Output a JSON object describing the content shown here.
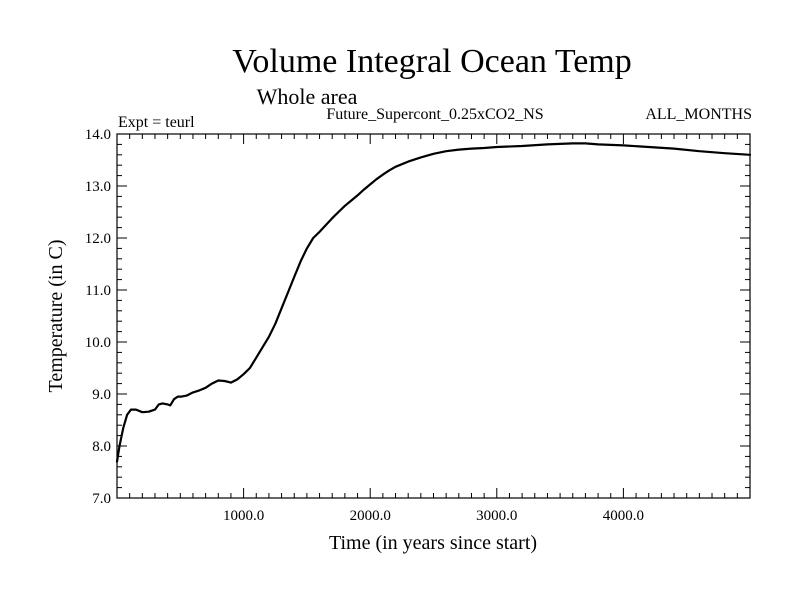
{
  "chart_data": {
    "type": "line",
    "title": "Volume Integral Ocean Temp",
    "subtitle": "Whole area",
    "experiment": "Expt = teurl",
    "run_name": "Future_Supercont_0.25xCO2_NS",
    "period": "ALL_MONTHS",
    "xlabel": "Time (in years since start)",
    "ylabel": "Temperature (in C)",
    "xlim": [
      0,
      5000
    ],
    "ylim": [
      7.0,
      14.0
    ],
    "xticks": [
      1000,
      2000,
      3000,
      4000
    ],
    "xtick_labels": [
      "1000.0",
      "2000.0",
      "3000.0",
      "4000.0"
    ],
    "yticks": [
      7,
      8,
      9,
      10,
      11,
      12,
      13,
      14
    ],
    "ytick_labels": [
      "7.0",
      "8.0",
      "9.0",
      "10.0",
      "11.0",
      "12.0",
      "13.0",
      "14.0"
    ],
    "grid": false,
    "series": [
      {
        "x": [
          0,
          20,
          50,
          80,
          110,
          150,
          200,
          250,
          300,
          330,
          360,
          400,
          420,
          450,
          480,
          510,
          550,
          600,
          650,
          700,
          750,
          800,
          850,
          900,
          950,
          1000,
          1050,
          1100,
          1150,
          1200,
          1250,
          1300,
          1350,
          1400,
          1450,
          1500,
          1550,
          1600,
          1650,
          1700,
          1750,
          1800,
          1850,
          1900,
          1950,
          2000,
          2050,
          2100,
          2150,
          2200,
          2300,
          2400,
          2500,
          2600,
          2700,
          2800,
          2900,
          3000,
          3200,
          3400,
          3600,
          3700,
          3800,
          4000,
          4200,
          4400,
          4600,
          4800,
          5000
        ],
        "y": [
          7.7,
          8.0,
          8.35,
          8.6,
          8.7,
          8.7,
          8.65,
          8.66,
          8.7,
          8.8,
          8.82,
          8.8,
          8.78,
          8.9,
          8.95,
          8.95,
          8.97,
          9.03,
          9.07,
          9.12,
          9.2,
          9.26,
          9.25,
          9.22,
          9.28,
          9.38,
          9.5,
          9.7,
          9.9,
          10.1,
          10.35,
          10.65,
          10.95,
          11.25,
          11.55,
          11.8,
          12.0,
          12.12,
          12.25,
          12.38,
          12.5,
          12.62,
          12.72,
          12.82,
          12.93,
          13.03,
          13.13,
          13.22,
          13.3,
          13.37,
          13.47,
          13.55,
          13.62,
          13.67,
          13.7,
          13.72,
          13.73,
          13.75,
          13.77,
          13.8,
          13.82,
          13.82,
          13.8,
          13.78,
          13.75,
          13.72,
          13.67,
          13.63,
          13.6
        ]
      }
    ]
  }
}
